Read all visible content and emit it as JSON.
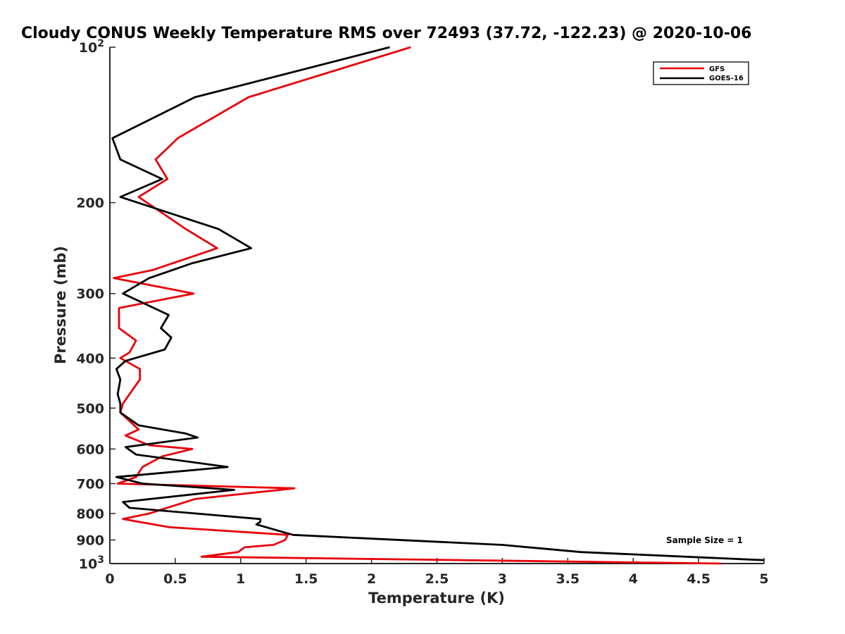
{
  "chart_data": {
    "type": "line",
    "title": "Cloudy CONUS Weekly Temperature RMS over 72493 (37.72, -122.23) @ 2020-10-06",
    "xlabel": "Temperature (K)",
    "ylabel": "Pressure (mb)",
    "xlim": [
      0,
      5
    ],
    "ylim": [
      100,
      1000
    ],
    "y_scale": "log",
    "y_reversed": true,
    "grid": false,
    "legend_position": "top-right",
    "x_ticks": [
      "0",
      "0.5",
      "1",
      "1.5",
      "2",
      "2.5",
      "3",
      "3.5",
      "4",
      "4.5",
      "5"
    ],
    "x_tick_values": [
      0,
      0.5,
      1,
      1.5,
      2,
      2.5,
      3,
      3.5,
      4,
      4.5,
      5
    ],
    "y_ticks": [
      {
        "value": 100,
        "base": "10",
        "exp": "2"
      },
      {
        "value": 200,
        "label": "200"
      },
      {
        "value": 300,
        "label": "300"
      },
      {
        "value": 400,
        "label": "400"
      },
      {
        "value": 500,
        "label": "500"
      },
      {
        "value": 600,
        "label": "600"
      },
      {
        "value": 700,
        "label": "700"
      },
      {
        "value": 800,
        "label": "800"
      },
      {
        "value": 900,
        "label": "900"
      },
      {
        "value": 1000,
        "base": "10",
        "exp": "3"
      }
    ],
    "annotation": "Sample Size = 1",
    "series": [
      {
        "name": "GFS",
        "color": "#e8000b",
        "points": [
          [
            2.3,
            100
          ],
          [
            1.06,
            125
          ],
          [
            0.52,
            150
          ],
          [
            0.35,
            165
          ],
          [
            0.44,
            180
          ],
          [
            0.22,
            195
          ],
          [
            0.58,
            225
          ],
          [
            0.82,
            245
          ],
          [
            0.33,
            270
          ],
          [
            0.03,
            280
          ],
          [
            0.64,
            300
          ],
          [
            0.07,
            320
          ],
          [
            0.07,
            350
          ],
          [
            0.2,
            370
          ],
          [
            0.15,
            390
          ],
          [
            0.08,
            400
          ],
          [
            0.23,
            420
          ],
          [
            0.23,
            440
          ],
          [
            0.15,
            470
          ],
          [
            0.1,
            490
          ],
          [
            0.08,
            510
          ],
          [
            0.22,
            550
          ],
          [
            0.12,
            565
          ],
          [
            0.3,
            590
          ],
          [
            0.63,
            600
          ],
          [
            0.4,
            620
          ],
          [
            0.25,
            650
          ],
          [
            0.2,
            680
          ],
          [
            0.06,
            700
          ],
          [
            1.41,
            715
          ],
          [
            0.65,
            750
          ],
          [
            0.3,
            800
          ],
          [
            0.1,
            820
          ],
          [
            0.45,
            850
          ],
          [
            1.36,
            880
          ],
          [
            1.34,
            900
          ],
          [
            1.25,
            920
          ],
          [
            1.03,
            930
          ],
          [
            0.98,
            950
          ],
          [
            0.7,
            970
          ],
          [
            4.67,
            1000
          ]
        ]
      },
      {
        "name": "GOES-16",
        "color": "#000000",
        "points": [
          [
            2.14,
            100
          ],
          [
            0.65,
            125
          ],
          [
            0.02,
            150
          ],
          [
            0.08,
            165
          ],
          [
            0.4,
            180
          ],
          [
            0.08,
            195
          ],
          [
            0.83,
            225
          ],
          [
            1.08,
            245
          ],
          [
            0.63,
            262
          ],
          [
            0.3,
            280
          ],
          [
            0.1,
            300
          ],
          [
            0.45,
            330
          ],
          [
            0.39,
            350
          ],
          [
            0.47,
            365
          ],
          [
            0.42,
            385
          ],
          [
            0.12,
            405
          ],
          [
            0.05,
            420
          ],
          [
            0.08,
            440
          ],
          [
            0.06,
            470
          ],
          [
            0.08,
            490
          ],
          [
            0.08,
            510
          ],
          [
            0.22,
            540
          ],
          [
            0.58,
            560
          ],
          [
            0.67,
            570
          ],
          [
            0.12,
            595
          ],
          [
            0.2,
            615
          ],
          [
            0.9,
            650
          ],
          [
            0.05,
            680
          ],
          [
            0.25,
            700
          ],
          [
            0.95,
            720
          ],
          [
            0.1,
            760
          ],
          [
            0.15,
            780
          ],
          [
            1.15,
            820
          ],
          [
            1.15,
            830
          ],
          [
            1.12,
            840
          ],
          [
            1.4,
            880
          ],
          [
            3.0,
            920
          ],
          [
            3.6,
            950
          ],
          [
            5.0,
            985
          ]
        ]
      }
    ]
  }
}
